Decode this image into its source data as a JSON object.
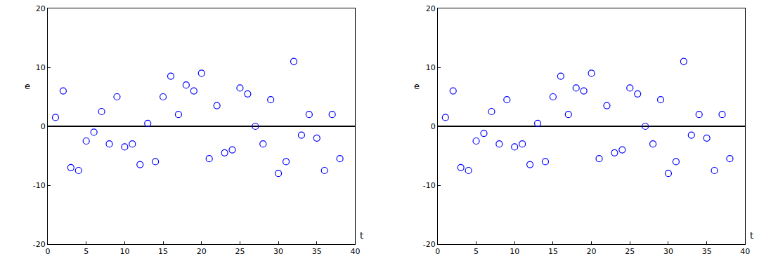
{
  "chart_data": [
    {
      "type": "scatter",
      "x_label": "t",
      "y_label": "e",
      "x": [
        1,
        2,
        3,
        4,
        5,
        6,
        7,
        8,
        9,
        10,
        11,
        12,
        13,
        14,
        15,
        16,
        17,
        18,
        19,
        20,
        21,
        22,
        23,
        24,
        25,
        26,
        27,
        28,
        29,
        30,
        31,
        32,
        33,
        34,
        35,
        36,
        37,
        38
      ],
      "values": [
        1.5,
        6,
        -7,
        -7.5,
        -2.5,
        -1,
        2.5,
        -3,
        5,
        -3.5,
        -3,
        -6.5,
        0.5,
        -6,
        5,
        8.5,
        2,
        7,
        6,
        9,
        -5.5,
        3.5,
        -4.5,
        -4,
        6.5,
        5.5,
        0,
        -3,
        4.5,
        -8,
        -6,
        11,
        -1.5,
        2,
        -2,
        -7.5,
        2,
        -5.5
      ],
      "color": "#0000ff",
      "marker": "open_circle",
      "xlim": [
        0,
        40
      ],
      "ylim": [
        -20,
        20
      ],
      "xticks": [
        0,
        5,
        10,
        15,
        20,
        25,
        30,
        35,
        40
      ],
      "yticks": [
        -20,
        -10,
        0,
        10,
        20
      ],
      "grid": false
    },
    {
      "type": "scatter",
      "x_label": "t",
      "y_label": "e",
      "x": [
        1,
        2,
        3,
        4,
        5,
        6,
        7,
        8,
        9,
        10,
        11,
        12,
        13,
        14,
        15,
        16,
        17,
        18,
        19,
        20,
        21,
        22,
        23,
        24,
        25,
        26,
        27,
        28,
        29,
        30,
        31,
        32,
        33,
        34,
        35,
        36,
        37,
        38
      ],
      "values": [
        1.5,
        6,
        -7,
        -7.5,
        -2.5,
        -1.2,
        2.5,
        -3,
        4.5,
        -3.5,
        -3,
        -6.5,
        0.5,
        -6,
        5,
        8.5,
        2,
        6.5,
        6,
        9,
        -5.5,
        3.5,
        -4.5,
        -4,
        6.5,
        5.5,
        0,
        -3,
        4.5,
        -8,
        -6,
        11,
        -1.5,
        2,
        -2,
        -7.5,
        2,
        -5.5
      ],
      "color": "#0000ff",
      "marker": "open_circle",
      "xlim": [
        0,
        40
      ],
      "ylim": [
        -20,
        20
      ],
      "xticks": [
        0,
        5,
        10,
        15,
        20,
        25,
        30,
        35,
        40
      ],
      "yticks": [
        -20,
        -10,
        0,
        10,
        20
      ],
      "grid": false
    }
  ]
}
